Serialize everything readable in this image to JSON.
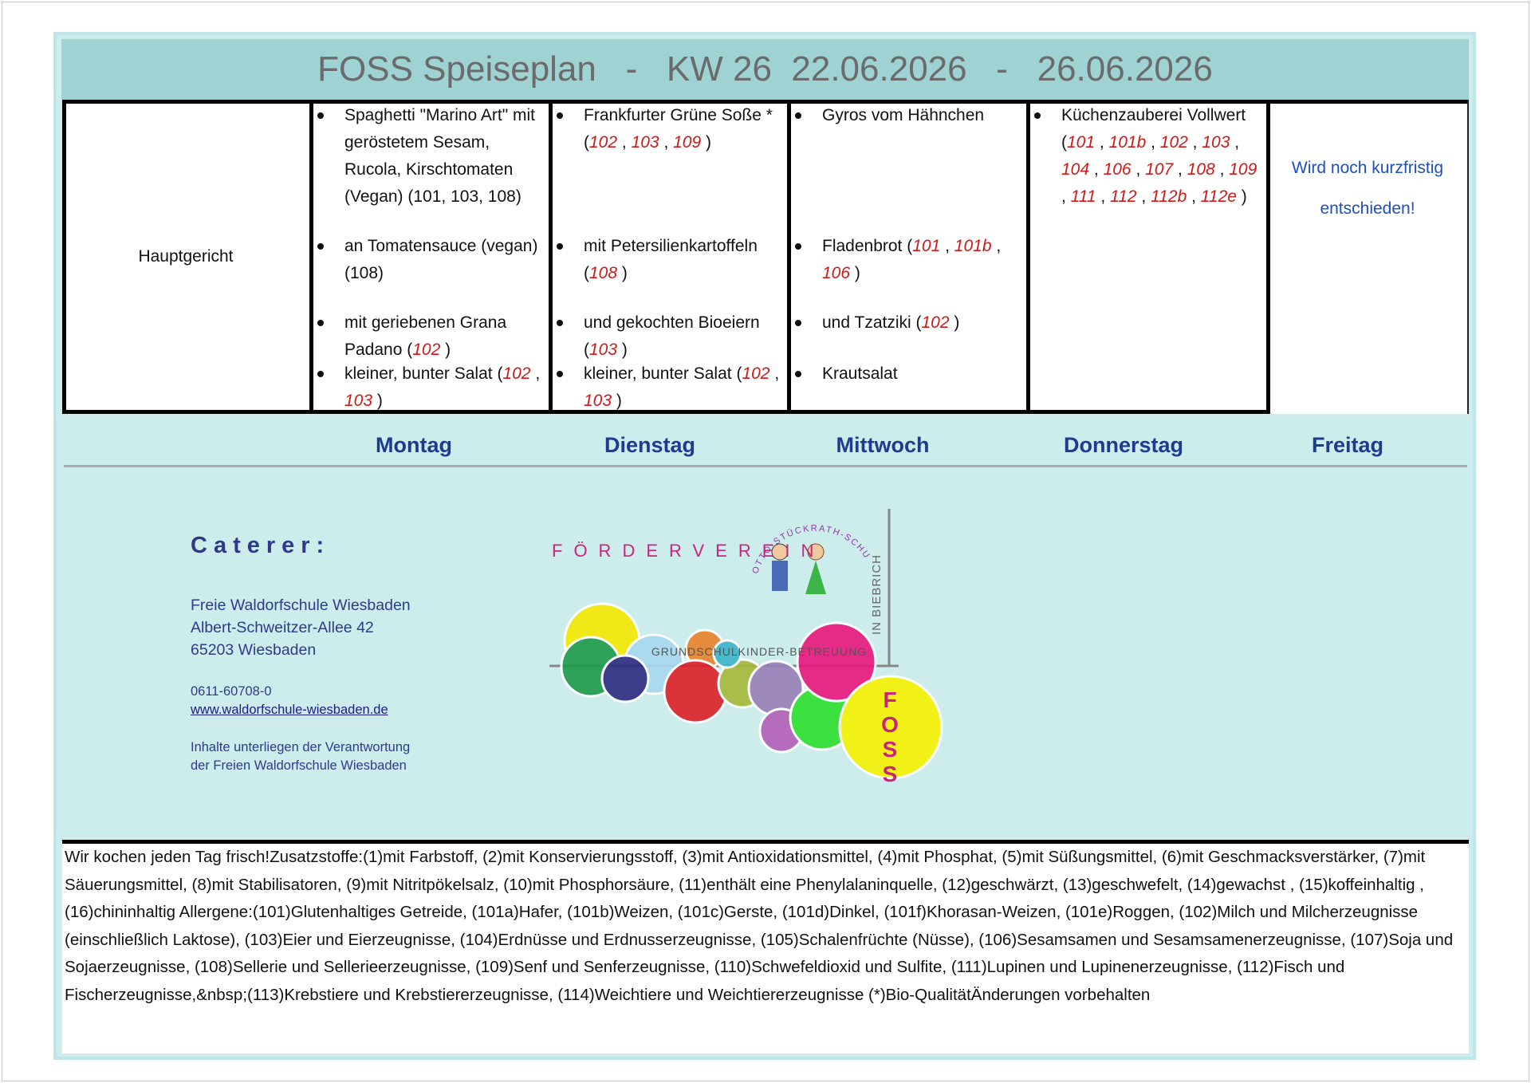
{
  "header": {
    "title": "FOSS Speiseplan   -   KW 26  22.06.2026   -   26.06.2026"
  },
  "table": {
    "row_label": "Hauptgericht",
    "days": [
      {
        "name": "Montag",
        "items": [
          [
            "Spaghetti \"Marino Art\" mit geröstetem Sesam, Rucola, Kirschtomaten (Vegan) (101, 103, 108)"
          ],
          [
            "an Tomatensauce (vegan) (108)"
          ],
          [
            "mit geriebenen Grana Padano (",
            {
              "code": "102"
            },
            " )"
          ],
          [
            "kleiner, bunter Salat (",
            {
              "code": "102"
            },
            " , ",
            {
              "code": "103"
            },
            " )"
          ]
        ]
      },
      {
        "name": "Dienstag",
        "items": [
          [
            "Frankfurter Grüne Soße * (",
            {
              "code": "102"
            },
            " , ",
            {
              "code": "103"
            },
            " , ",
            {
              "code": "109"
            },
            " )"
          ],
          [
            "mit Petersilienkartoffeln (",
            {
              "code": "108"
            },
            " )"
          ],
          [
            "und gekochten Bioeiern (",
            {
              "code": "103"
            },
            " )"
          ],
          [
            "kleiner, bunter Salat (",
            {
              "code": "102"
            },
            " , ",
            {
              "code": "103"
            },
            " )"
          ]
        ]
      },
      {
        "name": "Mittwoch",
        "items": [
          [
            "Gyros vom Hähnchen"
          ],
          [
            "Fladenbrot (",
            {
              "code": "101"
            },
            " , ",
            {
              "code": "101b"
            },
            " , ",
            {
              "code": "106"
            },
            " )"
          ],
          [
            "und Tzatziki (",
            {
              "code": "102"
            },
            " )"
          ],
          [
            "Krautsalat"
          ]
        ]
      },
      {
        "name": "Donnerstag",
        "items": [
          [
            "Küchenzauberei Vollwert (",
            {
              "code": "101"
            },
            " , ",
            {
              "code": "101b"
            },
            " , ",
            {
              "code": "102"
            },
            " , ",
            {
              "code": "103"
            },
            " , ",
            {
              "code": "104"
            },
            " , ",
            {
              "code": "106"
            },
            " , ",
            {
              "code": "107"
            },
            " , ",
            {
              "code": "108"
            },
            " , ",
            {
              "code": "109"
            },
            " , ",
            {
              "code": "111"
            },
            " , ",
            {
              "code": "112"
            },
            " , ",
            {
              "code": "112b"
            },
            " , ",
            {
              "code": "112e"
            },
            " )"
          ]
        ]
      },
      {
        "name": "Freitag",
        "items": [],
        "note": "Wird noch kurzfristig entschieden!"
      }
    ]
  },
  "caterer": {
    "heading": "Caterer:",
    "address": [
      "Freie Waldorfschule Wiesbaden",
      "Albert-Schweitzer-Allee 42",
      "65203 Wiesbaden"
    ],
    "phone": "0611-60708-0",
    "website": "www.waldorfschule-wiesbaden.de",
    "disclaimer": [
      "Inhalte unterliegen der Verantwortung",
      "der Freien Waldorfschule Wiesbaden"
    ]
  },
  "logo": {
    "association": "FÖRDERVEREIN",
    "school": "OTTO-STÜCKRATH-SCHULE",
    "district": "IN BIEBRICH",
    "care": "GRUNDSCHULKINDER-BETREUUNG",
    "short": "FOSS"
  },
  "footer": {
    "text": "Wir kochen jeden Tag frisch!Zusatzstoffe:(1)mit Farbstoff, (2)mit Konservierungsstoff, (3)mit Antioxidationsmittel, (4)mit Phosphat, (5)mit Süßungsmittel, (6)mit Geschmacksverstärker, (7)mit Säuerungsmittel, (8)mit Stabilisatoren, (9)mit Nitritpökelsalz, (10)mit Phosphorsäure, (11)enthält eine Phenylalaninquelle, (12)geschwärzt, (13)geschwefelt, (14)gewachst , (15)koffeinhaltig , (16)chininhaltig  Allergene:(101)Glutenhaltiges Getreide, (101a)Hafer, (101b)Weizen, (101c)Gerste, (101d)Dinkel, (101f)Khorasan-Weizen, (101e)Roggen, (102)Milch und Milcherzeugnisse (einschließlich Laktose), (103)Eier und Eierzeugnisse, (104)Erdnüsse und Erdnusserzeugnisse, (105)Schalenfrüchte (Nüsse), (106)Sesamsamen und Sesamsamenerzeugnisse, (107)Soja und Sojaerzeugnisse, (108)Sellerie und Sellerieerzeugnisse, (109)Senf und Senferzeugnisse, (110)Schwefeldioxid und Sulfite, (111)Lupinen und Lupinenerzeugnisse, (112)Fisch und Fischerzeugnisse,&nbsp;(113)Krebstiere und Krebstiererzeugnisse, (114)Weichtiere und Weichtiererzeugnisse   (*)Bio-QualitätÄnderungen vorbehalten"
  }
}
